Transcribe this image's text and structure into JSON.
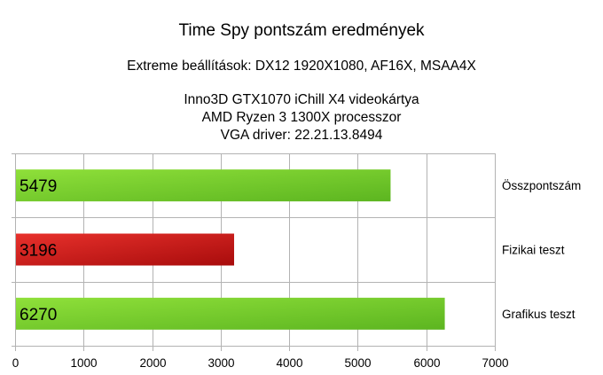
{
  "chart_data": {
    "type": "bar",
    "orientation": "horizontal",
    "title": "Time Spy pontszám eredmények",
    "subtitle": "Extreme beállítások: DX12 1920X1080, AF16X, MSAA4X",
    "info_lines": [
      "Inno3D GTX1070 iChill X4 videokártya",
      "AMD Ryzen 3 1300X processzor",
      "VGA driver: 22.21.13.8494"
    ],
    "categories": [
      "Összpontszám",
      "Fizikai teszt",
      "Grafikus teszt"
    ],
    "values": [
      5479,
      3196,
      6270
    ],
    "value_labels": [
      "5479",
      "3196",
      "6270"
    ],
    "bar_colors": [
      "#7dd12f",
      "#d41e1e",
      "#7dd12f"
    ],
    "xlim": [
      0,
      7000
    ],
    "xticks": [
      0,
      1000,
      2000,
      3000,
      4000,
      5000,
      6000,
      7000
    ],
    "xtick_labels": [
      "0",
      "1000",
      "2000",
      "3000",
      "4000",
      "5000",
      "6000",
      "7000"
    ],
    "grid": true,
    "category_labels_position": "right"
  }
}
